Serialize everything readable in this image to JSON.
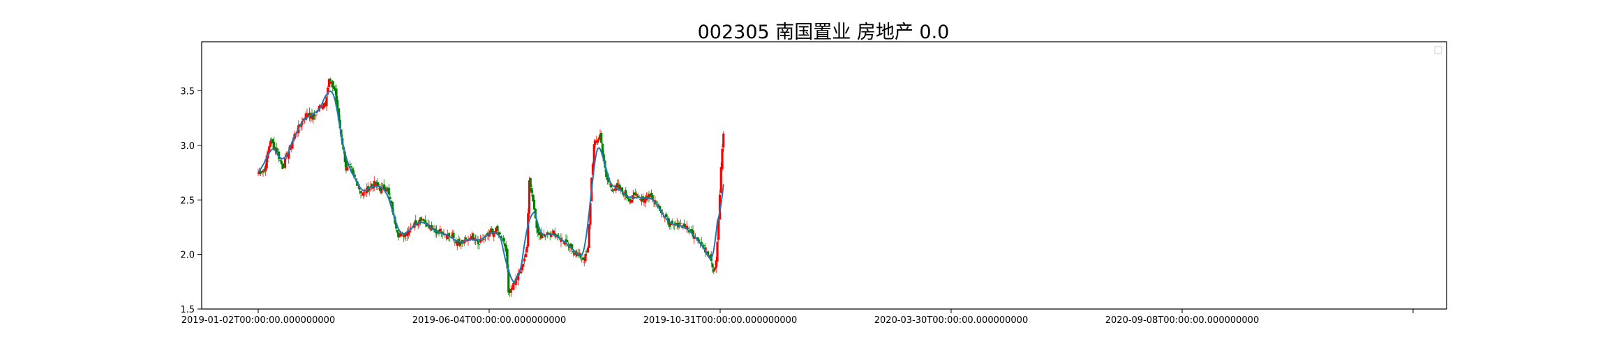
{
  "chart_data": {
    "type": "candlestick",
    "title": "002305 南国置业 房地产 0.0",
    "xlabel": "",
    "ylabel": "",
    "ylim": [
      1.5,
      3.95
    ],
    "y_ticks": [
      1.5,
      2.0,
      2.5,
      3.0,
      3.5
    ],
    "y_tick_labels": [
      "1.5",
      "2.0",
      "2.5",
      "3.0",
      "3.5"
    ],
    "x_tick_labels": [
      "2019-01-02T00:00:00.000000000",
      "2019-06-04T00:00:00.000000000",
      "2019-10-31T00:00:00.000000000",
      "2020-03-30T00:00:00.000000000",
      "2020-09-08T00:00:00.000000000"
    ],
    "x_tick_count": 6,
    "legend_placement": "top-right",
    "legend_entries": [],
    "grid": false,
    "colors": {
      "up": "#ff0000",
      "down": "#008000",
      "ma": "#1f77b4"
    },
    "close_path": [
      [
        0,
        2.75
      ],
      [
        5,
        2.78
      ],
      [
        10,
        3.05
      ],
      [
        15,
        2.95
      ],
      [
        20,
        2.8
      ],
      [
        25,
        2.95
      ],
      [
        30,
        3.1
      ],
      [
        35,
        3.2
      ],
      [
        40,
        3.3
      ],
      [
        45,
        3.25
      ],
      [
        50,
        3.35
      ],
      [
        55,
        3.4
      ],
      [
        58,
        3.6
      ],
      [
        63,
        3.5
      ],
      [
        65,
        3.3
      ],
      [
        70,
        2.95
      ],
      [
        72,
        2.78
      ],
      [
        75,
        2.8
      ],
      [
        80,
        2.68
      ],
      [
        85,
        2.55
      ],
      [
        90,
        2.6
      ],
      [
        95,
        2.65
      ],
      [
        100,
        2.6
      ],
      [
        105,
        2.62
      ],
      [
        108,
        2.5
      ],
      [
        112,
        2.3
      ],
      [
        115,
        2.18
      ],
      [
        120,
        2.18
      ],
      [
        125,
        2.25
      ],
      [
        130,
        2.3
      ],
      [
        135,
        2.33
      ],
      [
        140,
        2.25
      ],
      [
        145,
        2.2
      ],
      [
        150,
        2.22
      ],
      [
        155,
        2.18
      ],
      [
        160,
        2.15
      ],
      [
        165,
        2.08
      ],
      [
        170,
        2.12
      ],
      [
        175,
        2.15
      ],
      [
        180,
        2.1
      ],
      [
        185,
        2.15
      ],
      [
        190,
        2.2
      ],
      [
        195,
        2.22
      ],
      [
        200,
        2.15
      ],
      [
        203,
        2.05
      ],
      [
        205,
        1.65
      ],
      [
        210,
        1.75
      ],
      [
        215,
        1.85
      ],
      [
        220,
        2.05
      ],
      [
        222,
        2.7
      ],
      [
        225,
        2.5
      ],
      [
        228,
        2.25
      ],
      [
        232,
        2.15
      ],
      [
        237,
        2.2
      ],
      [
        242,
        2.2
      ],
      [
        247,
        2.15
      ],
      [
        252,
        2.1
      ],
      [
        257,
        2.05
      ],
      [
        262,
        2.0
      ],
      [
        267,
        1.95
      ],
      [
        270,
        2.05
      ],
      [
        273,
        2.7
      ],
      [
        275,
        3.0
      ],
      [
        280,
        3.1
      ],
      [
        285,
        2.7
      ],
      [
        290,
        2.6
      ],
      [
        295,
        2.62
      ],
      [
        300,
        2.55
      ],
      [
        305,
        2.5
      ],
      [
        310,
        2.55
      ],
      [
        315,
        2.5
      ],
      [
        320,
        2.55
      ],
      [
        325,
        2.5
      ],
      [
        330,
        2.4
      ],
      [
        335,
        2.3
      ],
      [
        340,
        2.25
      ],
      [
        345,
        2.28
      ],
      [
        350,
        2.25
      ],
      [
        355,
        2.2
      ],
      [
        360,
        2.15
      ],
      [
        365,
        2.05
      ],
      [
        370,
        2.0
      ],
      [
        373,
        1.85
      ],
      [
        375,
        1.95
      ],
      [
        377,
        2.3
      ],
      [
        379,
        2.8
      ],
      [
        381,
        3.1
      ]
    ],
    "close_seed": 7,
    "candles": 382
  }
}
